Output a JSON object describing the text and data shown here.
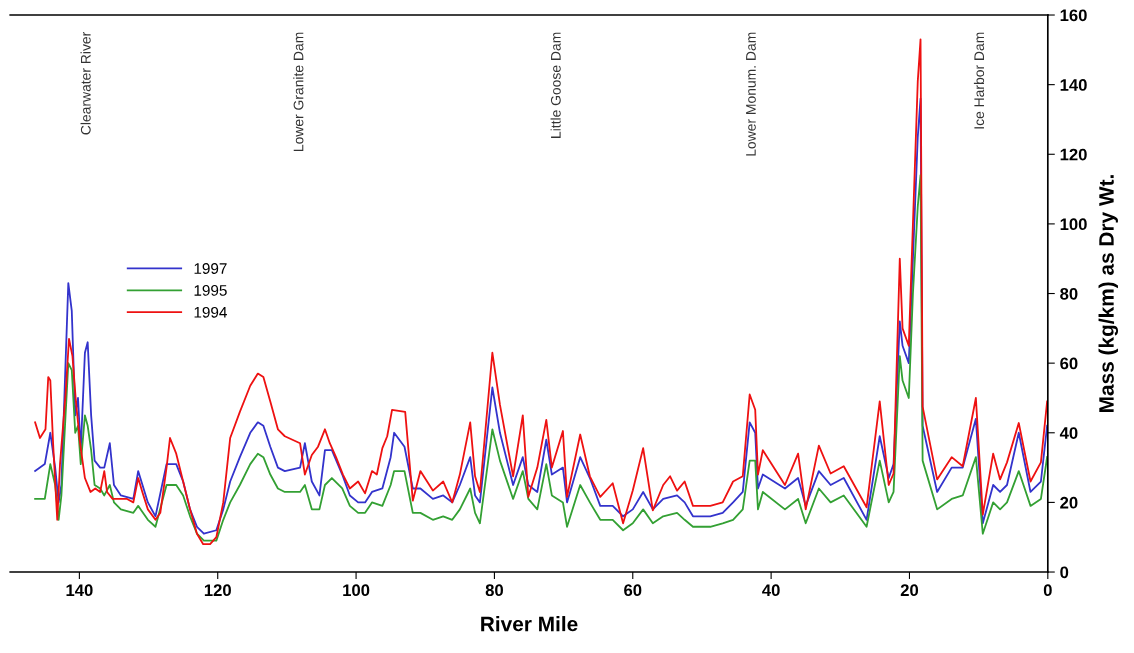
{
  "chart_data": {
    "type": "line",
    "xlabel": "River Mile",
    "ylabel": "Mass (kg/km) as Dry Wt.",
    "xlim": [
      150,
      0
    ],
    "xticks": [
      140,
      120,
      100,
      80,
      60,
      40,
      20,
      0
    ],
    "ylim": [
      0,
      160
    ],
    "yticks": [
      0,
      20,
      40,
      60,
      80,
      100,
      120,
      140,
      160
    ],
    "grid": false,
    "legend": "left",
    "marker": "none",
    "line_style": "solid",
    "annotations": [
      "Clearwater River",
      "Lower Granite Dam",
      "Little Goose Dam",
      "Lower Monum. Dam",
      "Ice Harbor Dam"
    ],
    "series": [
      {
        "name": "1997",
        "color": "#3333cc",
        "x": [
          146.4,
          145,
          144.2,
          143.5,
          143.0,
          142.6,
          142.0,
          141.6,
          141.1,
          140.6,
          140.2,
          139.8,
          139.2,
          138.8,
          138.3,
          137.8,
          137.0,
          136.4,
          135.6,
          135,
          134,
          132.2,
          131.5,
          130.1,
          129,
          127.4,
          126,
          125,
          124,
          123,
          122,
          120.2,
          119.2,
          118.2,
          116.8,
          115.3,
          114.2,
          113.4,
          112.4,
          111.3,
          110.3,
          108.1,
          107.4,
          106.4,
          105.3,
          104.5,
          103.5,
          102,
          100.9,
          99.7,
          98.7,
          97.7,
          96.2,
          95,
          94.5,
          93,
          91.8,
          90.7,
          88.9,
          87.4,
          86.1,
          85,
          83.5,
          82.8,
          82.1,
          80.3,
          79.2,
          77.3,
          75.9,
          75.1,
          73.8,
          72.5,
          71.7,
          70.1,
          69.5,
          67.6,
          66.2,
          64.7,
          62.9,
          61.4,
          60,
          58.5,
          57.1,
          55.6,
          53.6,
          52.5,
          51.3,
          48.8,
          47,
          45.5,
          44.1,
          43.1,
          42.3,
          41.9,
          41.2,
          38,
          36.1,
          35,
          33.1,
          31.4,
          29.5,
          26.2,
          24.3,
          23,
          22.3,
          21.4,
          21.0,
          20.1,
          19.5,
          18.8,
          18.4,
          18.1,
          16,
          13.9,
          12.3,
          10.4,
          9.4,
          7.9,
          6.9,
          5.9,
          4.2,
          2.5,
          1.0,
          0.1
        ],
        "values": [
          29,
          31,
          40,
          30,
          20,
          25,
          60,
          83,
          75,
          45,
          50,
          35,
          63,
          66,
          45,
          32,
          30,
          30,
          37,
          25,
          22,
          21,
          29,
          20,
          16,
          31,
          31,
          26,
          18,
          13,
          11,
          12,
          18,
          26,
          33,
          40,
          43,
          42,
          36,
          30,
          29,
          30,
          37,
          26,
          22,
          35,
          35,
          28,
          22,
          20,
          20,
          23,
          24,
          33,
          40,
          36,
          24,
          24,
          21,
          22,
          20,
          25,
          33,
          22,
          20,
          53,
          40,
          25,
          33,
          25,
          23,
          38,
          28,
          30,
          20,
          33,
          27,
          19,
          19,
          16,
          18,
          23,
          18,
          21,
          22,
          20,
          16,
          16,
          17,
          20,
          23,
          43,
          40,
          24,
          28,
          24,
          27,
          19,
          29,
          25,
          27,
          15,
          39,
          27,
          31,
          72,
          65,
          60,
          90,
          125,
          136,
          42,
          23,
          30,
          30,
          44,
          14,
          25,
          23,
          25,
          40,
          23,
          26,
          42
        ]
      },
      {
        "name": "1995",
        "color": "#33a033",
        "x": [
          146.4,
          145,
          144.2,
          143.5,
          143.0,
          142.6,
          142.0,
          141.6,
          141.1,
          140.6,
          140.2,
          139.8,
          139.2,
          138.8,
          138.3,
          137.8,
          137.0,
          136.4,
          135.6,
          135,
          134,
          132.2,
          131.5,
          130.1,
          129,
          127.4,
          126,
          125,
          124,
          123,
          122,
          120.2,
          119.2,
          118.2,
          116.8,
          115.3,
          114.2,
          113.4,
          112.4,
          111.3,
          110.3,
          108.1,
          107.4,
          106.4,
          105.3,
          104.5,
          103.5,
          102,
          100.9,
          99.7,
          98.7,
          97.7,
          96.2,
          95,
          94.5,
          93,
          91.8,
          90.7,
          88.9,
          87.4,
          86.1,
          85,
          83.5,
          82.8,
          82.1,
          80.3,
          79.2,
          77.3,
          75.9,
          75.1,
          73.8,
          72.5,
          71.7,
          70.1,
          69.5,
          67.6,
          66.2,
          64.7,
          62.9,
          61.4,
          60,
          58.5,
          57.1,
          55.6,
          53.6,
          52.5,
          51.3,
          48.8,
          47,
          45.5,
          44.1,
          43.1,
          42.3,
          41.9,
          41.2,
          38,
          36.1,
          35,
          33.1,
          31.4,
          29.5,
          26.2,
          24.3,
          23,
          22.3,
          21.4,
          21.0,
          20.1,
          19.5,
          18.8,
          18.4,
          18.1,
          16,
          13.9,
          12.3,
          10.4,
          9.4,
          7.9,
          6.9,
          5.9,
          4.2,
          2.5,
          1.0,
          0.1
        ],
        "values": [
          21,
          21,
          31,
          25,
          15,
          22,
          45,
          60,
          58,
          40,
          42,
          31,
          45,
          42,
          35,
          25,
          24,
          22,
          25,
          20,
          18,
          17,
          19,
          15,
          13,
          25,
          25,
          22,
          16,
          11,
          9,
          9,
          15,
          20,
          25,
          31,
          34,
          33,
          28,
          24,
          23,
          23,
          25,
          18,
          18,
          25,
          27,
          24,
          19,
          17,
          17,
          20,
          19,
          25,
          29,
          29,
          17,
          17,
          15,
          16,
          15,
          18,
          24,
          17,
          14,
          41,
          32,
          21,
          29,
          21,
          18,
          31,
          22,
          20,
          13,
          25,
          20,
          15,
          15,
          12,
          14,
          18,
          14,
          16,
          17,
          15,
          13,
          13,
          14,
          15,
          18,
          32,
          32,
          18,
          23,
          18,
          21,
          14,
          24,
          20,
          22,
          13,
          32,
          20,
          23,
          62,
          55,
          50,
          80,
          105,
          114,
          32,
          18,
          21,
          22,
          33,
          11,
          20,
          18,
          20,
          29,
          19,
          21,
          33
        ]
      },
      {
        "name": "1994",
        "color": "#ee1111",
        "x": [
          146.4,
          145.7,
          144.9,
          144.5,
          144.2,
          143.8,
          143.2,
          142.8,
          142.0,
          141.5,
          141.0,
          140.5,
          139.9,
          139.2,
          138.4,
          137.7,
          137.0,
          136.4,
          136.0,
          135.2,
          133.1,
          132.2,
          131.5,
          130.9,
          130.1,
          129.0,
          128.3,
          127.4,
          126.9,
          126.0,
          125.0,
          124.0,
          123.0,
          122.1,
          121.1,
          120.2,
          119.2,
          118.2,
          116.8,
          115.3,
          114.2,
          113.4,
          112.4,
          111.3,
          110.3,
          108.1,
          107.4,
          106.4,
          105.5,
          104.5,
          103.8,
          102.9,
          101.9,
          100.9,
          99.7,
          98.7,
          97.7,
          97.0,
          96.2,
          95.5,
          94.8,
          92.9,
          91.8,
          90.7,
          88.9,
          87.4,
          86.1,
          85.0,
          83.5,
          82.8,
          82.1,
          80.3,
          79.2,
          77.3,
          75.9,
          75.1,
          73.8,
          72.5,
          71.7,
          70.1,
          69.5,
          67.6,
          66.2,
          64.7,
          62.9,
          61.4,
          60.0,
          58.5,
          57.1,
          55.6,
          54.6,
          53.6,
          52.5,
          51.3,
          48.8,
          47.0,
          45.5,
          44.1,
          43.1,
          42.3,
          41.9,
          41.2,
          38.0,
          36.1,
          35.0,
          33.1,
          31.4,
          29.5,
          26.2,
          24.3,
          23.0,
          22.3,
          21.4,
          21.0,
          20.1,
          19.5,
          18.8,
          18.4,
          18.1,
          16.0,
          13.9,
          12.3,
          10.4,
          9.4,
          7.9,
          6.9,
          5.9,
          4.2,
          2.5,
          1.0,
          0.1
        ],
        "values": [
          43,
          38.5,
          41,
          56,
          55,
          37,
          15,
          31,
          51,
          67,
          62,
          49,
          37,
          27,
          23,
          24,
          23,
          29,
          23,
          21,
          21,
          20,
          27,
          23,
          18,
          15,
          17,
          30,
          38.5,
          34,
          26,
          18,
          11,
          8,
          8,
          10,
          20,
          38.5,
          46,
          53.5,
          57,
          56,
          49,
          41,
          39,
          37,
          28,
          33.6,
          36,
          41,
          37,
          33,
          28,
          24,
          26,
          22.6,
          29,
          28,
          35.6,
          39,
          46.6,
          46,
          20.5,
          29,
          23.4,
          26,
          20,
          28,
          43,
          27.5,
          23,
          63,
          48,
          27.5,
          45,
          21.6,
          30,
          43.7,
          30,
          40.5,
          21.6,
          39.5,
          27.5,
          21.6,
          25.5,
          14,
          23.4,
          35.6,
          17.7,
          25,
          27.5,
          23.4,
          26,
          19,
          19,
          20,
          26,
          27.5,
          51,
          46.6,
          28,
          35,
          25,
          34,
          18,
          36.3,
          28.3,
          30.4,
          18.6,
          49,
          25,
          28.3,
          90,
          70,
          65,
          100,
          141,
          153,
          47.5,
          26.6,
          33,
          30.4,
          50,
          16.5,
          34,
          26.6,
          31.5,
          42.8,
          26,
          31.5,
          49
        ]
      }
    ]
  }
}
